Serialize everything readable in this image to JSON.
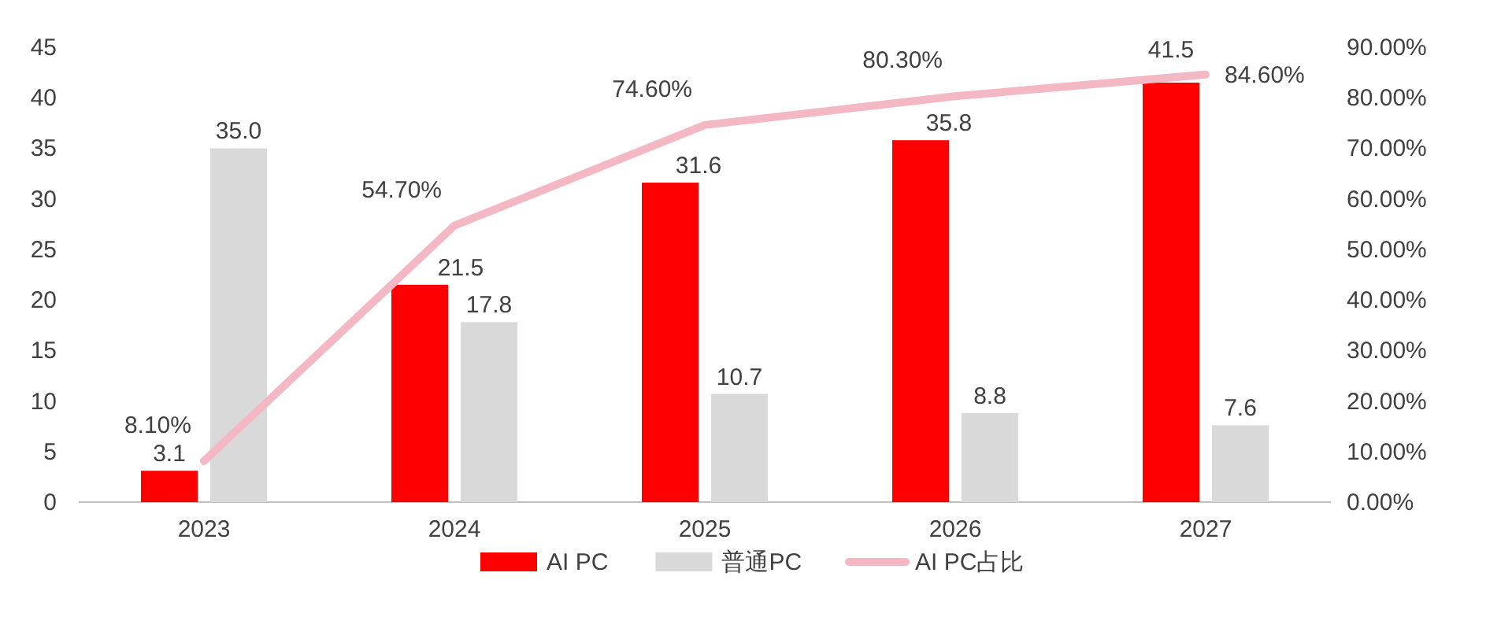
{
  "chart_data": {
    "type": "bar",
    "categories": [
      "2023",
      "2024",
      "2025",
      "2026",
      "2027"
    ],
    "series": [
      {
        "name": "AI PC",
        "color": "#ff0000",
        "values": [
          3.1,
          21.5,
          31.6,
          35.8,
          41.5
        ],
        "value_labels": [
          "3.1",
          "21.5",
          "31.6",
          "35.8",
          "41.5"
        ]
      },
      {
        "name": "普通PC",
        "color": "#d9d9d9",
        "values": [
          35.0,
          17.8,
          10.7,
          8.8,
          7.6
        ],
        "value_labels": [
          "35.0",
          "17.8",
          "10.7",
          "8.8",
          "7.6"
        ]
      },
      {
        "name": "AI PC占比",
        "type": "line",
        "axis": "y2",
        "color": "#f4b8c4",
        "values": [
          8.1,
          54.7,
          74.6,
          80.3,
          84.6
        ],
        "value_labels": [
          "8.10%",
          "54.70%",
          "74.60%",
          "80.30%",
          "84.60%"
        ]
      }
    ],
    "ylim": [
      0,
      45
    ],
    "yticks": [
      0,
      5,
      10,
      15,
      20,
      25,
      30,
      35,
      40,
      45
    ],
    "y2lim": [
      0,
      90
    ],
    "y2ticks": [
      {
        "value": 0,
        "label": "0.00%"
      },
      {
        "value": 10,
        "label": "10.00%"
      },
      {
        "value": 20,
        "label": "20.00%"
      },
      {
        "value": 30,
        "label": "30.00%"
      },
      {
        "value": 40,
        "label": "40.00%"
      },
      {
        "value": 50,
        "label": "50.00%"
      },
      {
        "value": 60,
        "label": "60.00%"
      },
      {
        "value": 70,
        "label": "70.00%"
      },
      {
        "value": 80,
        "label": "80.00%"
      },
      {
        "value": 90,
        "label": "90.00%"
      }
    ],
    "legend": "bottom",
    "grid": false
  }
}
